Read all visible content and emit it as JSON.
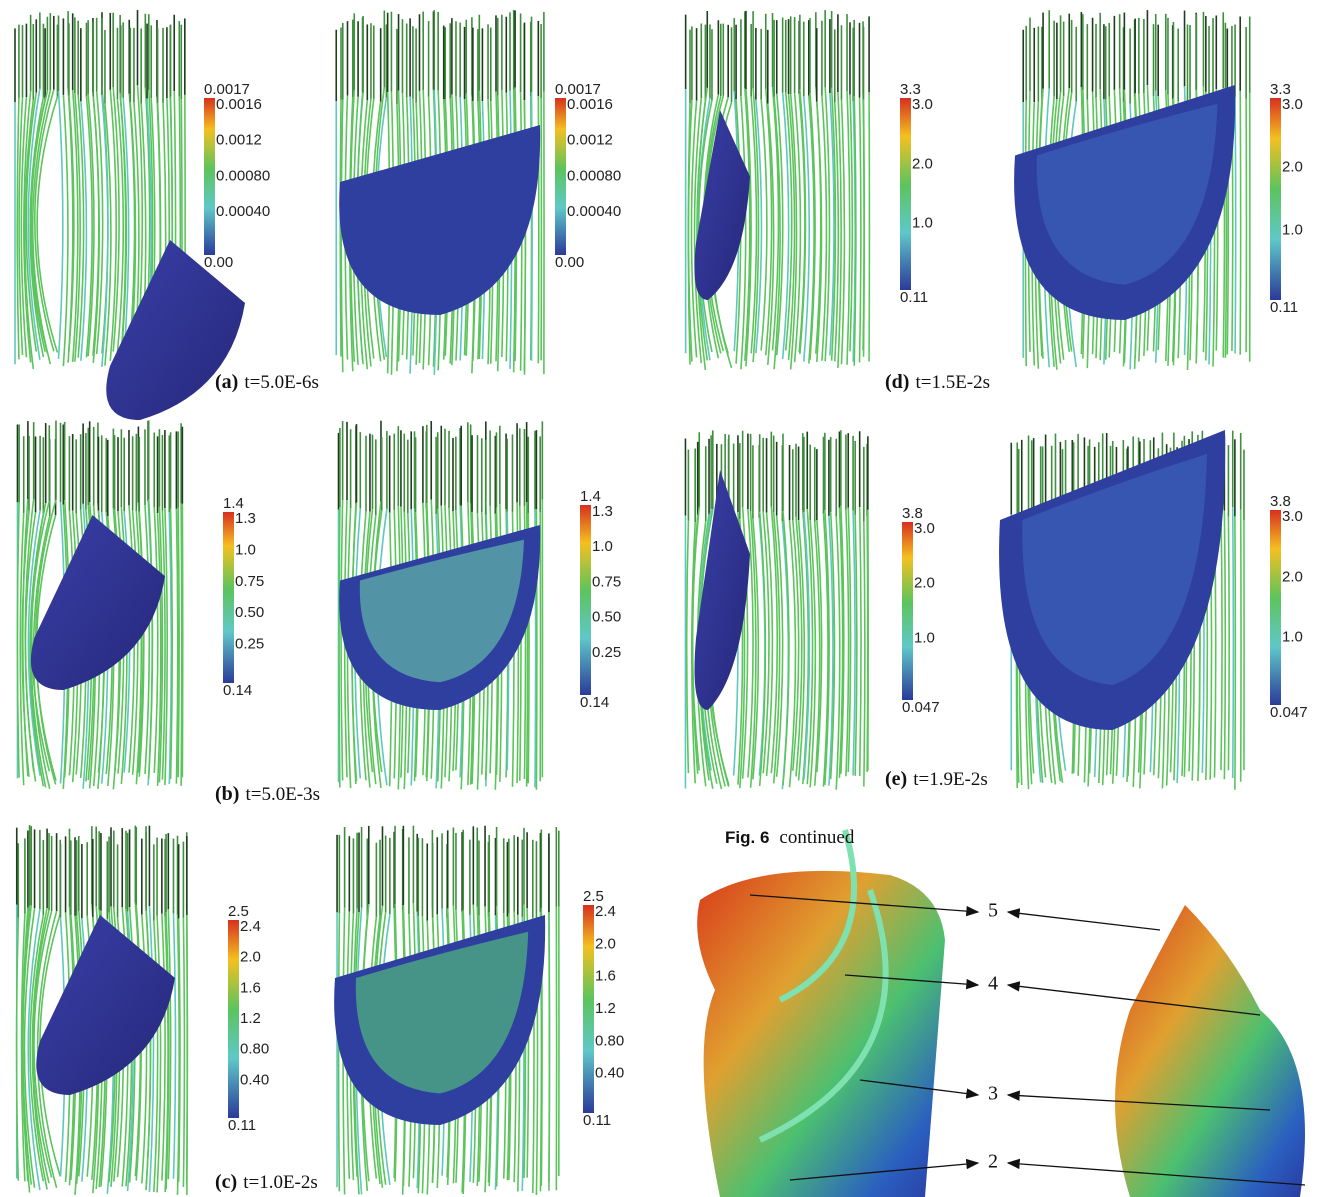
{
  "panels": [
    {
      "label": "(a)",
      "caption": "t=5.0E-6s",
      "scale_labels": [
        "0.0017",
        "0.0016",
        "0.0012",
        "0.00080",
        "0.00040",
        "0.00"
      ]
    },
    {
      "label": "(b)",
      "caption": "t=5.0E-3s",
      "scale_labels": [
        "1.4",
        "1.3",
        "1.0",
        "0.75",
        "0.50",
        "0.25",
        "0.14"
      ]
    },
    {
      "label": "(c)",
      "caption": "t=1.0E-2s",
      "scale_labels": [
        "2.5",
        "2.4",
        "2.0",
        "1.6",
        "1.2",
        "0.80",
        "0.40",
        "0.11"
      ]
    },
    {
      "label": "(d)",
      "caption": "t=1.5E-2s",
      "scale_labels": [
        "3.3",
        "3.0",
        "2.0",
        "1.0",
        "0.11"
      ]
    },
    {
      "label": "(e)",
      "caption": "t=1.9E-2s",
      "scale_labels": [
        "3.8",
        "3.0",
        "2.0",
        "1.0",
        "0.047"
      ]
    }
  ],
  "figure_caption": {
    "label": "Fig. 6",
    "text": "continued"
  },
  "annotations": [
    "5",
    "4",
    "3",
    "2"
  ]
}
